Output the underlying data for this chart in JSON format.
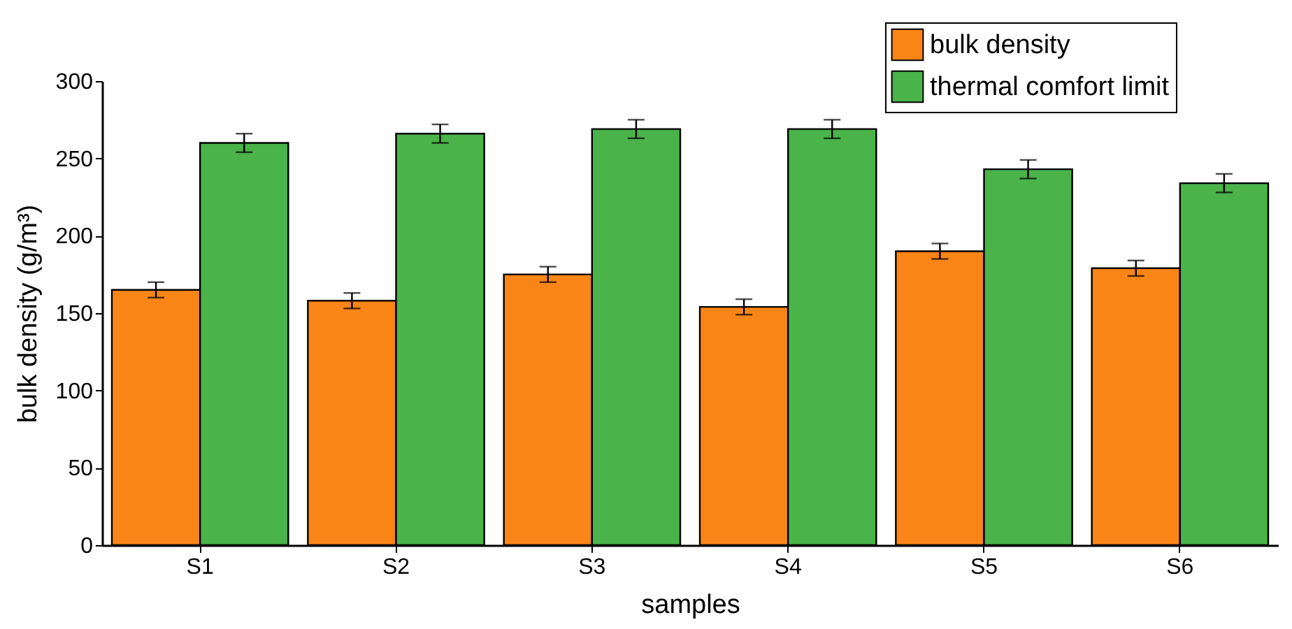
{
  "chart_data": {
    "type": "bar",
    "xlabel": "samples",
    "ylabel": "bulk density (g/m³)",
    "categories": [
      "S1",
      "S2",
      "S3",
      "S4",
      "S5",
      "S6"
    ],
    "series": [
      {
        "name": "bulk density",
        "color": "#fa8517",
        "values": [
          165,
          158,
          175,
          154,
          190,
          179
        ],
        "errors": [
          5,
          5,
          5,
          5,
          5,
          5
        ]
      },
      {
        "name": "thermal comfort limit",
        "color": "#4ab34a",
        "values": [
          260,
          266,
          269,
          269,
          243,
          234
        ],
        "errors": [
          6,
          6,
          6,
          6,
          6,
          6
        ]
      }
    ],
    "ylim": [
      0,
      300
    ],
    "yticks": [
      0,
      50,
      100,
      150,
      200,
      250,
      300
    ],
    "grid": false,
    "legend": "top right"
  }
}
